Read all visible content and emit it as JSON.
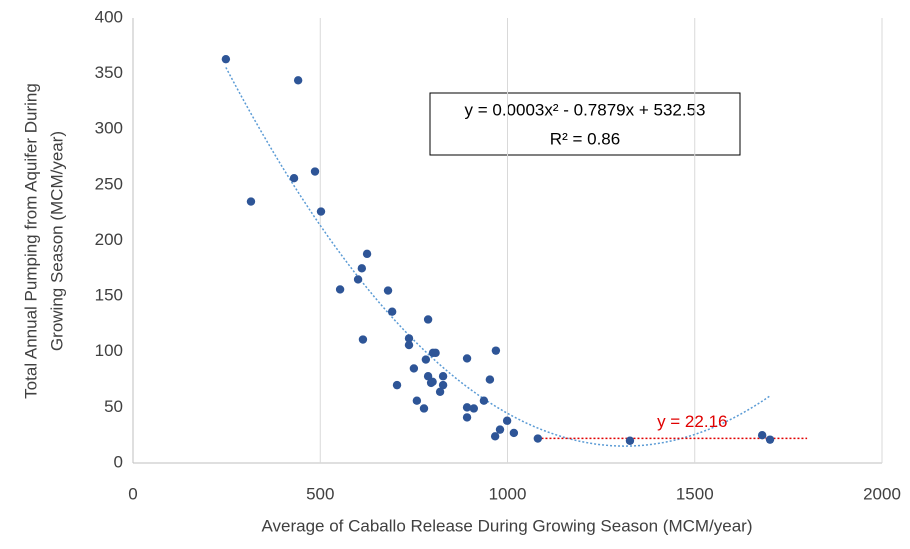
{
  "chart_data": {
    "type": "scatter",
    "xlabel": "Average of Caballo Release During Growing Season (MCM/year)",
    "ylabel": [
      "Total Annual Pumping from Aquifer During",
      "Growing Season (MCM/year)"
    ],
    "xlim": [
      0,
      2000
    ],
    "xticks": [
      0,
      500,
      1000,
      1500,
      2000
    ],
    "ylim": [
      0,
      400
    ],
    "yticks": [
      0,
      50,
      100,
      150,
      200,
      250,
      300,
      350,
      400
    ],
    "grid": "x",
    "color": "#2e5597",
    "x": [
      248,
      441,
      315,
      430,
      486,
      502,
      625,
      611,
      601,
      553,
      681,
      692,
      614,
      788,
      737,
      737,
      801,
      808,
      782,
      892,
      969,
      750,
      705,
      788,
      796,
      800,
      828,
      828,
      820,
      758,
      777,
      937,
      953,
      892,
      910,
      892,
      999,
      980,
      967,
      1017,
      1081,
      1327,
      1680,
      1701
    ],
    "y": [
      363,
      344,
      235,
      256,
      262,
      226,
      188,
      175,
      165,
      156,
      155,
      136,
      111,
      129,
      112,
      106,
      99,
      99,
      93,
      94,
      101,
      85,
      70,
      78,
      72,
      73,
      78,
      70,
      64,
      56,
      49,
      56,
      75,
      50,
      49,
      41,
      38,
      30,
      24,
      27,
      22,
      20,
      25,
      21
    ],
    "trendline": {
      "color": "#5b9bd5",
      "coefficients": [
        0.0003,
        -0.7879,
        532.53
      ],
      "equation": "y = 0.0003x² - 0.7879x + 532.53",
      "r_squared": "R² = 0.86"
    },
    "hline": {
      "color": "#e00000",
      "value": 22.16,
      "label": "y = 22.16",
      "x_range": [
        1080,
        1800
      ]
    }
  }
}
